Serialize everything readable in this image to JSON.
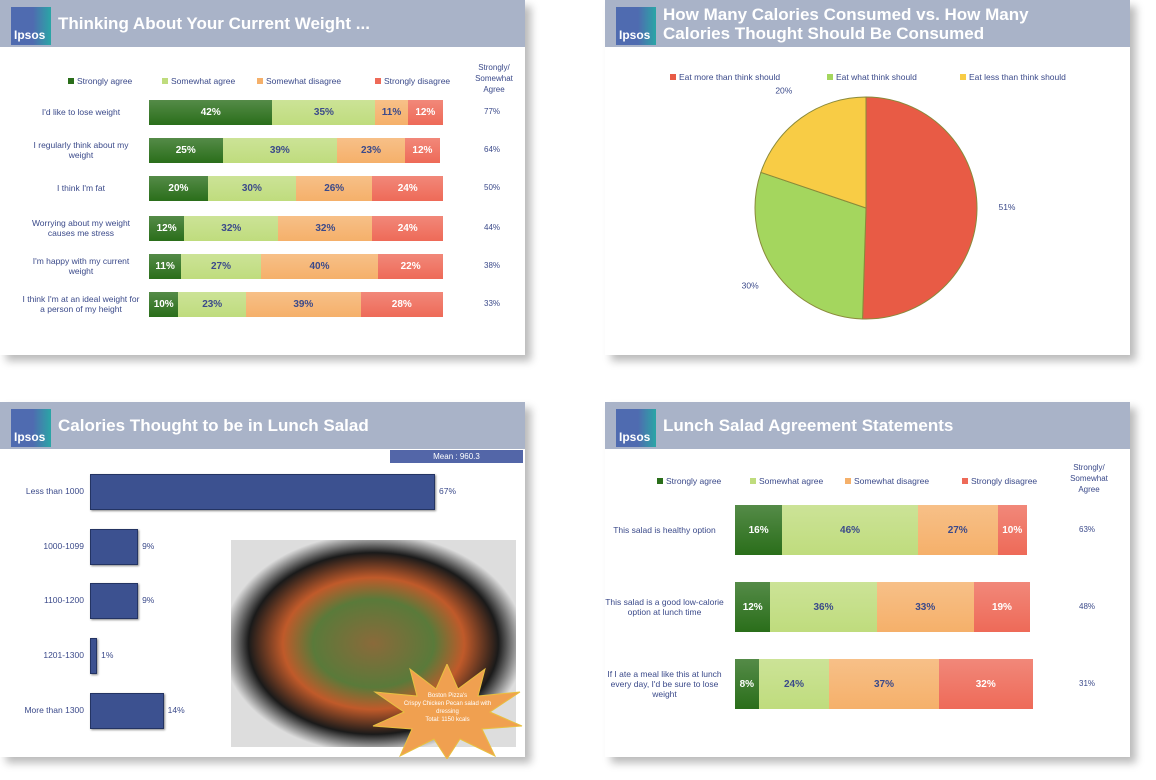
{
  "legend4": [
    "Strongly agree",
    "Somewhat agree",
    "Somewhat disagree",
    "Strongly disagree"
  ],
  "colors": [
    "#2a6e1a",
    "#bfdc7d",
    "#f5b06a",
    "#ee6a58"
  ],
  "agree_header": "Strongly/ Somewhat Agree",
  "logo": "Ipsos",
  "chart_data": [
    {
      "type": "bar",
      "stacked": true,
      "title": "Thinking About Your Current Weight ...",
      "categories": [
        "I'd like to lose weight",
        "I regularly think about my weight",
        "I think I'm fat",
        "Worrying about my weight causes me stress",
        "I'm happy with my current weight",
        "I think I'm at an ideal weight for a person of my height"
      ],
      "series": [
        {
          "name": "Strongly agree",
          "values": [
            42,
            25,
            20,
            12,
            11,
            10
          ]
        },
        {
          "name": "Somewhat agree",
          "values": [
            35,
            39,
            30,
            32,
            27,
            23
          ]
        },
        {
          "name": "Somewhat disagree",
          "values": [
            11,
            23,
            26,
            32,
            40,
            39
          ]
        },
        {
          "name": "Strongly disagree",
          "values": [
            12,
            12,
            24,
            24,
            22,
            28
          ]
        }
      ],
      "agree_totals": [
        "77%",
        "64%",
        "50%",
        "44%",
        "38%",
        "33%"
      ]
    },
    {
      "type": "pie",
      "title": "How Many Calories Consumed vs. How Many Calories Thought Should Be Consumed",
      "categories": [
        "Eat more than think should",
        "Eat what think should",
        "Eat less than think should"
      ],
      "values": [
        51,
        30,
        20
      ],
      "colors": [
        "#e85b45",
        "#a4d65e",
        "#f8cc45"
      ]
    },
    {
      "type": "bar",
      "horizontal": true,
      "title": "Calories Thought to be in Lunch Salad",
      "annotation": "Mean : 960.3",
      "categories": [
        "Less than 1000",
        "1000-1099",
        "1100-1200",
        "1201-1300",
        "More than 1300"
      ],
      "values": [
        67,
        9,
        9,
        1,
        14
      ],
      "callout": [
        "Boston Pizza's",
        "Crispy Chicken Pecan salad with",
        "dressing",
        "Total: 1150 kcals"
      ]
    },
    {
      "type": "bar",
      "stacked": true,
      "title": "Lunch Salad Agreement Statements",
      "categories": [
        "This salad is healthy option",
        "This salad is a good low-calorie option at lunch time",
        "If I ate a meal like this at lunch every day, I'd be sure to lose weight"
      ],
      "series": [
        {
          "name": "Strongly agree",
          "values": [
            16,
            12,
            8
          ]
        },
        {
          "name": "Somewhat agree",
          "values": [
            46,
            36,
            24
          ]
        },
        {
          "name": "Somewhat disagree",
          "values": [
            27,
            33,
            37
          ]
        },
        {
          "name": "Strongly disagree",
          "values": [
            10,
            19,
            32
          ]
        }
      ],
      "agree_totals": [
        "63%",
        "48%",
        "31%"
      ]
    }
  ]
}
